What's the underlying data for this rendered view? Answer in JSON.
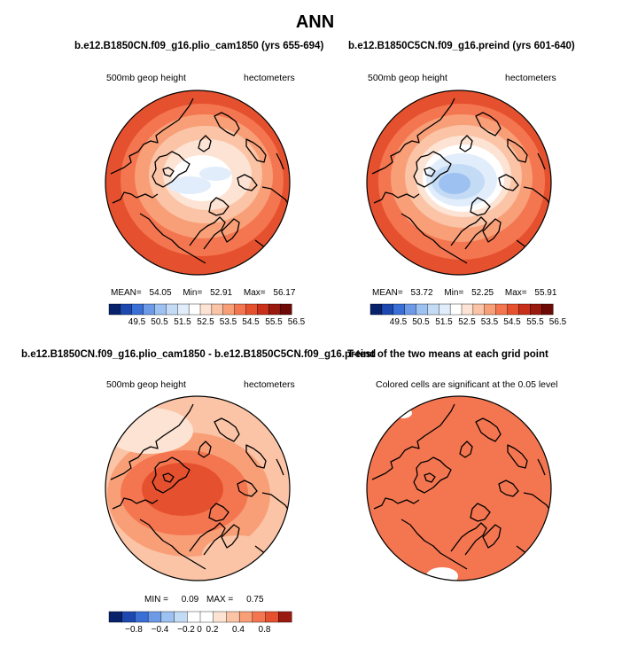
{
  "title": "ANN",
  "panels": [
    {
      "id": "plio",
      "title": "b.e12.B1850CN.f09_g16.plio_cam1850 (yrs 655-694)",
      "left_label": "500mb geop height",
      "right_label": "hectometers",
      "stats": {
        "mean_label": "MEAN=",
        "mean": "54.05",
        "min_label": "Min=",
        "min": "52.91",
        "max_label": "Max=",
        "max": "56.17"
      }
    },
    {
      "id": "preind",
      "title": "b.e12.B1850C5CN.f09_g16.preind (yrs 601-640)",
      "left_label": "500mb geop height",
      "right_label": "hectometers",
      "stats": {
        "mean_label": "MEAN=",
        "mean": "53.72",
        "min_label": "Min=",
        "min": "52.25",
        "max_label": "Max=",
        "max": "55.91"
      }
    },
    {
      "id": "diff",
      "title": "b.e12.B1850CN.f09_g16.plio_cam1850 - b.e12.B1850C5CN.f09_g16.preind",
      "left_label": "500mb geop height",
      "right_label": "hectometers",
      "stats": {
        "min_label": "MIN =",
        "min": "0.09",
        "max_label": "MAX =",
        "max": "0.75"
      }
    },
    {
      "id": "ttest",
      "title": "T-test of the two means at each grid point",
      "left_label": "Colored cells are significant at the 0.05 level"
    }
  ],
  "colorbars": {
    "absolute": {
      "ticks": [
        "49.5",
        "50.5",
        "51.5",
        "52.5",
        "53.5",
        "54.5",
        "55.5",
        "56.5"
      ],
      "colors": [
        "#08216b",
        "#1c48b0",
        "#3a6fd6",
        "#6d9ae6",
        "#9dc1f0",
        "#c4dbf6",
        "#e2edfb",
        "#ffffff",
        "#fde3d3",
        "#fbc4a6",
        "#f89f78",
        "#f47650",
        "#e5512e",
        "#c8301a",
        "#9b1a0f",
        "#6e0a06"
      ]
    },
    "difference": {
      "ticks": [
        "−0.8",
        "−0.4",
        "−0.2",
        "0",
        "0.2",
        "0.4",
        "0.8"
      ],
      "colors": [
        "#08216b",
        "#1c48b0",
        "#3a6fd6",
        "#6d9ae6",
        "#9dc1f0",
        "#c4dbf6",
        "#ffffff",
        "#ffffff",
        "#fde3d3",
        "#fbc4a6",
        "#f89f78",
        "#f47650",
        "#e5512e",
        "#9b1a0f"
      ]
    }
  }
}
